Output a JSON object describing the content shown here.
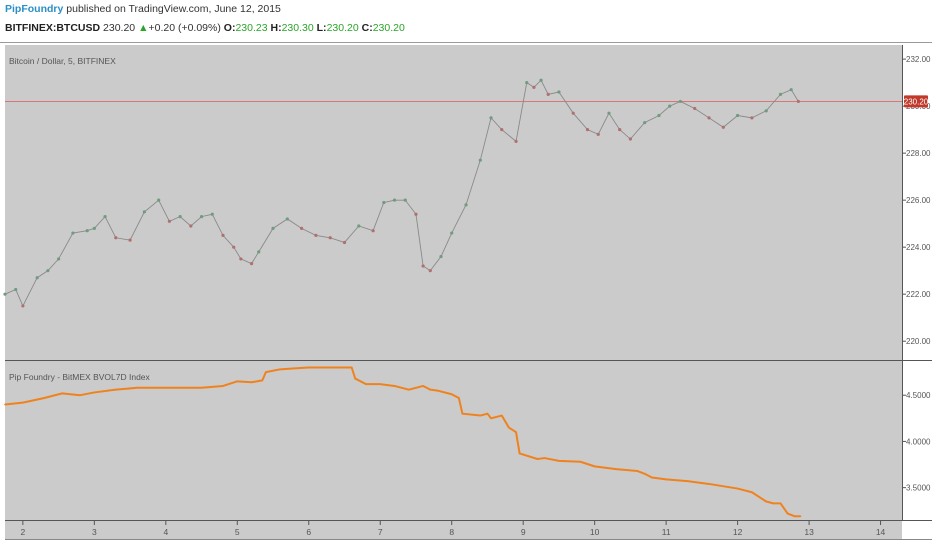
{
  "header": {
    "author": "PipFoundry",
    "published_text": " published on TradingView.com, June 12, 2015",
    "symbol": "BITFINEX:BTCUSD",
    "last": "230.20",
    "up_arrow": "▲",
    "change": "+0.20 (+0.09%)",
    "o_label": "O:",
    "o_value": "230.23",
    "h_label": "H:",
    "h_value": "230.30",
    "l_label": "L:",
    "l_value": "230.20",
    "c_label": "C:",
    "c_value": "230.20"
  },
  "colors": {
    "pane_bg": "#cbcbcb",
    "price_up": "#6f9c80",
    "price_down": "#b07070",
    "index_line": "#f0821e",
    "last_price_line": "#d96b6b",
    "last_price_tag": "#c0392b",
    "border": "#555555",
    "axis_text": "#555555"
  },
  "chart_data": [
    {
      "type": "line",
      "title": "Bitcoin / Dollar, 5, BITFINEX",
      "xlabel": "",
      "ylabel": "",
      "xlim": [
        1.75,
        14.3
      ],
      "ylim": [
        219.2,
        232.6
      ],
      "yticks": [
        220,
        222,
        224,
        226,
        228,
        230,
        232
      ],
      "ytick_labels": [
        "220.00",
        "222.00",
        "224.00",
        "226.00",
        "228.00",
        "230.00",
        "232.00"
      ],
      "last_price": 230.2,
      "last_price_label": "230.20",
      "x": [
        1.75,
        1.9,
        2.0,
        2.2,
        2.35,
        2.5,
        2.7,
        2.9,
        3.0,
        3.15,
        3.3,
        3.5,
        3.7,
        3.9,
        4.05,
        4.2,
        4.35,
        4.5,
        4.65,
        4.8,
        4.95,
        5.05,
        5.2,
        5.3,
        5.5,
        5.7,
        5.9,
        6.1,
        6.3,
        6.5,
        6.7,
        6.9,
        7.05,
        7.2,
        7.35,
        7.5,
        7.6,
        7.7,
        7.85,
        8.0,
        8.2,
        8.4,
        8.55,
        8.7,
        8.9,
        9.05,
        9.15,
        9.25,
        9.35,
        9.5,
        9.7,
        9.9,
        10.05,
        10.2,
        10.35,
        10.5,
        10.7,
        10.9,
        11.05,
        11.2,
        11.4,
        11.6,
        11.8,
        12.0,
        12.2,
        12.4,
        12.6,
        12.75,
        12.85
      ],
      "values": [
        222.0,
        222.2,
        221.5,
        222.7,
        223.0,
        223.5,
        224.6,
        224.7,
        224.8,
        225.3,
        224.4,
        224.3,
        225.5,
        226.0,
        225.1,
        225.3,
        224.9,
        225.3,
        225.4,
        224.5,
        224.0,
        223.5,
        223.3,
        223.8,
        224.8,
        225.2,
        224.8,
        224.5,
        224.4,
        224.2,
        224.9,
        224.7,
        225.9,
        226.0,
        226.0,
        225.4,
        223.2,
        223.0,
        223.6,
        224.6,
        225.8,
        227.7,
        229.5,
        229.0,
        228.5,
        231.0,
        230.8,
        231.1,
        230.5,
        230.6,
        229.7,
        229.0,
        228.8,
        229.7,
        229.0,
        228.6,
        229.3,
        229.6,
        230.0,
        230.2,
        229.9,
        229.5,
        229.1,
        229.6,
        229.5,
        229.8,
        230.5,
        230.7,
        230.2
      ]
    },
    {
      "type": "line",
      "title": "Pip Foundry - BitMEX BVOL7D Index",
      "xlabel": "",
      "ylabel": "",
      "xlim": [
        1.75,
        14.3
      ],
      "ylim": [
        3.15,
        4.87
      ],
      "yticks": [
        3.5,
        4.0,
        4.5
      ],
      "ytick_labels": [
        "3.5000",
        "4.0000",
        "4.5000"
      ],
      "x": [
        1.75,
        2.0,
        2.3,
        2.55,
        2.8,
        3.0,
        3.3,
        3.6,
        3.9,
        4.2,
        4.5,
        4.8,
        5.0,
        5.2,
        5.35,
        5.4,
        5.6,
        5.8,
        6.0,
        6.2,
        6.4,
        6.6,
        6.65,
        6.8,
        7.0,
        7.2,
        7.4,
        7.6,
        7.7,
        7.8,
        8.0,
        8.1,
        8.15,
        8.4,
        8.5,
        8.55,
        8.7,
        8.8,
        8.9,
        8.95,
        9.2,
        9.3,
        9.5,
        9.8,
        10.0,
        10.3,
        10.6,
        10.7,
        10.8,
        11.0,
        11.3,
        11.6,
        12.0,
        12.2,
        12.4,
        12.5,
        12.6,
        12.7,
        12.8,
        12.88
      ],
      "values": [
        4.4,
        4.42,
        4.47,
        4.52,
        4.5,
        4.53,
        4.56,
        4.58,
        4.58,
        4.58,
        4.58,
        4.6,
        4.65,
        4.64,
        4.66,
        4.75,
        4.78,
        4.79,
        4.8,
        4.8,
        4.8,
        4.8,
        4.68,
        4.62,
        4.62,
        4.6,
        4.56,
        4.6,
        4.56,
        4.55,
        4.51,
        4.47,
        4.3,
        4.28,
        4.3,
        4.25,
        4.28,
        4.15,
        4.1,
        3.87,
        3.81,
        3.82,
        3.79,
        3.78,
        3.73,
        3.7,
        3.68,
        3.65,
        3.61,
        3.59,
        3.57,
        3.54,
        3.49,
        3.45,
        3.35,
        3.33,
        3.33,
        3.22,
        3.19,
        3.19
      ]
    }
  ],
  "x_axis": {
    "tick_values": [
      2,
      3,
      4,
      5,
      6,
      7,
      8,
      9,
      10,
      11,
      12,
      13,
      14
    ],
    "tick_labels": [
      "2",
      "3",
      "4",
      "5",
      "6",
      "7",
      "8",
      "9",
      "10",
      "11",
      "12",
      "13",
      "14"
    ]
  }
}
